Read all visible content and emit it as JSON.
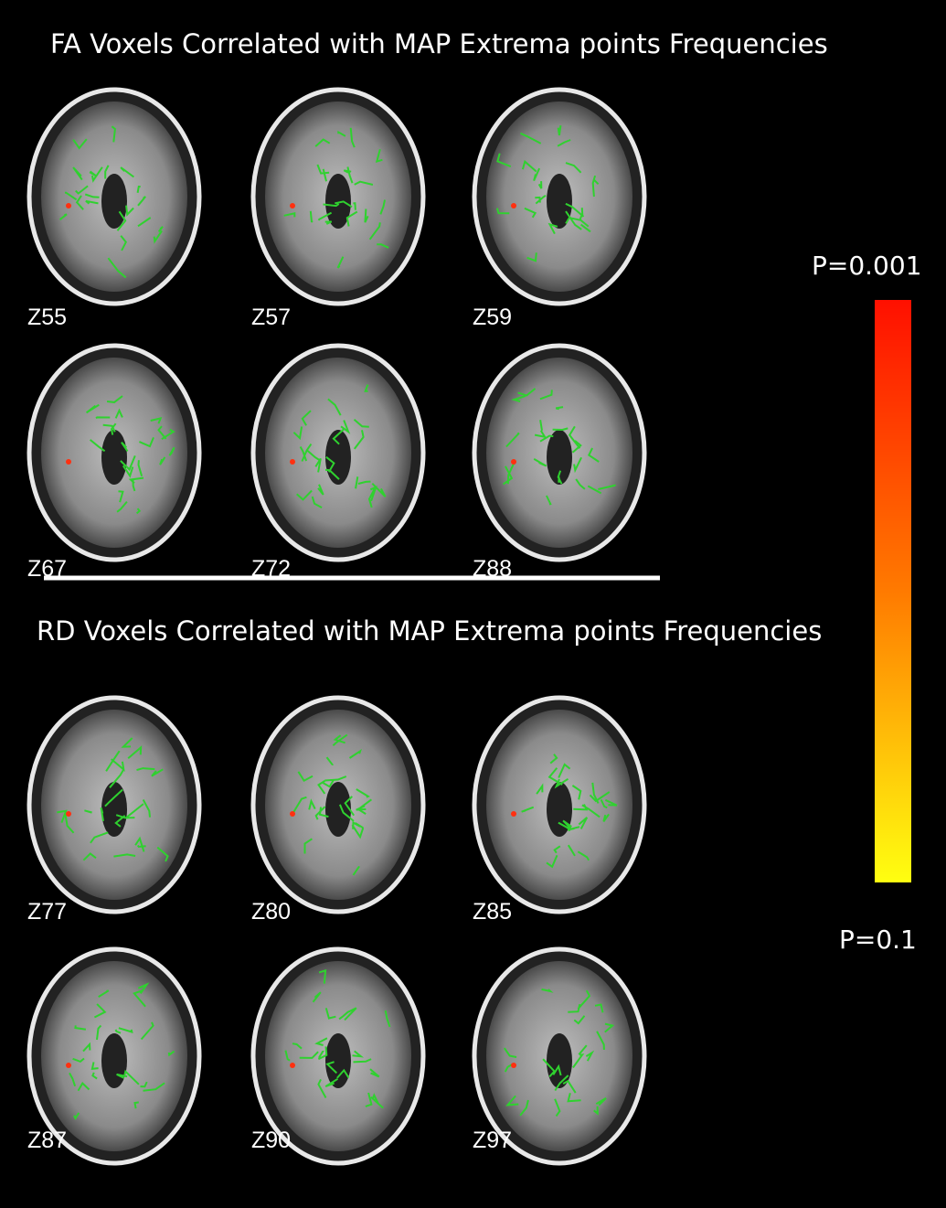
{
  "panels": [
    {
      "title": "FA Voxels Correlated with MAP Extrema points Frequencies",
      "slices": [
        "Z55",
        "Z57",
        "Z59",
        "Z67",
        "Z72",
        "Z88"
      ]
    },
    {
      "title": "RD Voxels Correlated with MAP Extrema points Frequencies",
      "slices": [
        "Z77",
        "Z80",
        "Z85",
        "Z87",
        "Z90",
        "Z97"
      ]
    }
  ],
  "colorbar": {
    "top_label": "P=0.001",
    "bottom_label": "P=0.1"
  }
}
